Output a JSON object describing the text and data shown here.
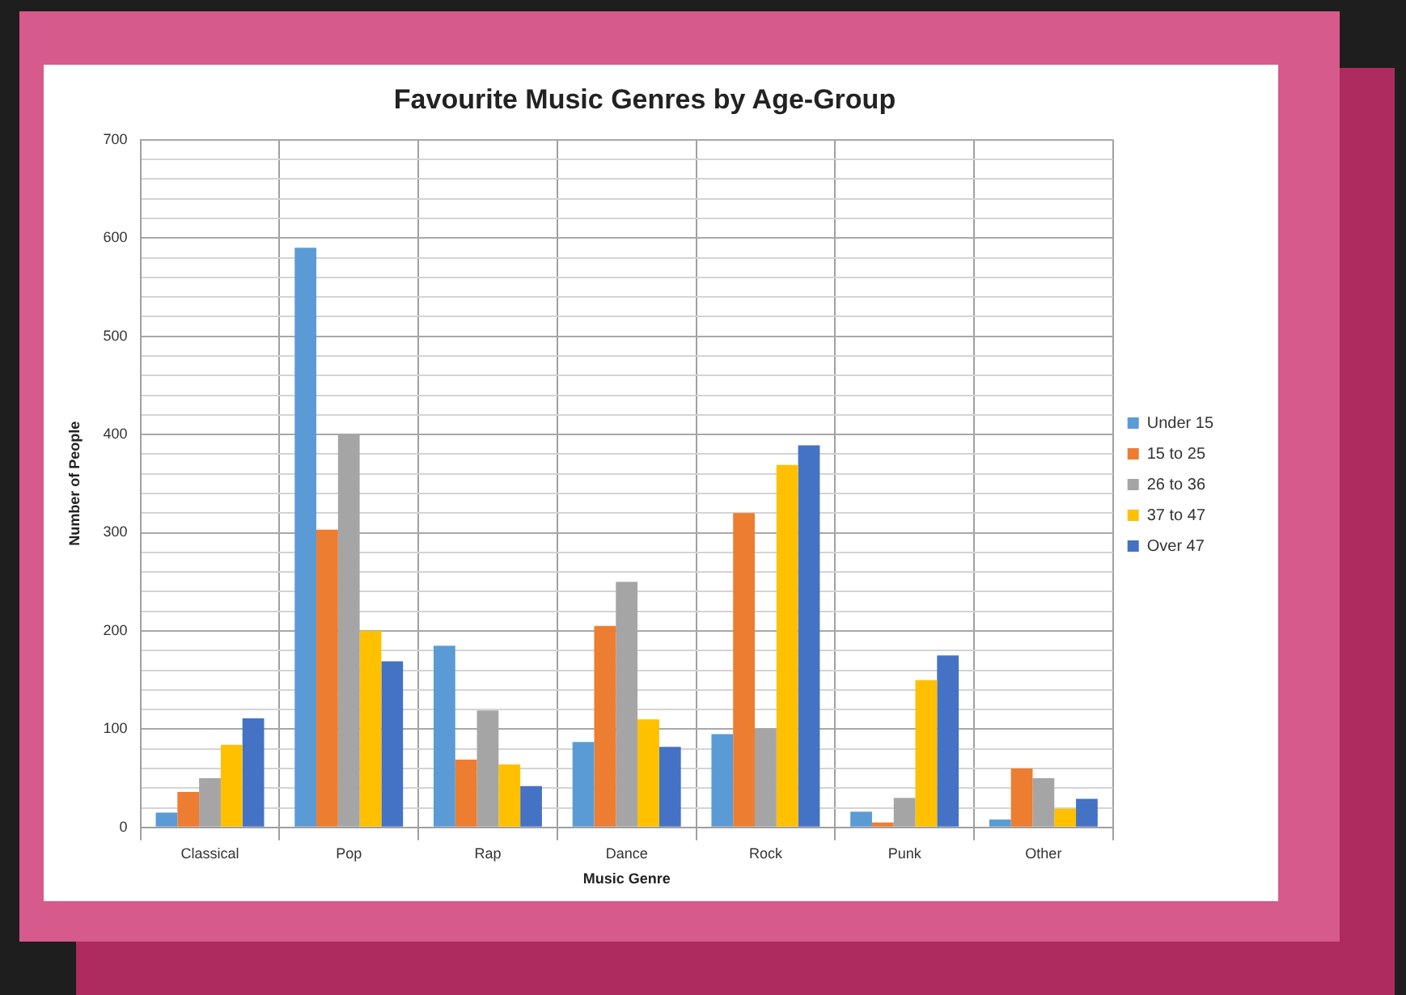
{
  "chart_data": {
    "type": "bar",
    "title": "Favourite Music Genres by Age-Group",
    "xlabel": "Music Genre",
    "ylabel": "Number of People",
    "categories": [
      "Classical",
      "Pop",
      "Rap",
      "Dance",
      "Rock",
      "Punk",
      "Other"
    ],
    "series": [
      {
        "name": "Under 15",
        "color": "#5b9bd5",
        "values": [
          15,
          590,
          185,
          87,
          95,
          16,
          8
        ]
      },
      {
        "name": "15 to 25",
        "color": "#ed7d31",
        "values": [
          36,
          303,
          69,
          205,
          320,
          5,
          60
        ]
      },
      {
        "name": "26 to 36",
        "color": "#a5a5a5",
        "values": [
          50,
          400,
          119,
          250,
          100,
          30,
          50
        ]
      },
      {
        "name": "37 to 47",
        "color": "#ffc000",
        "values": [
          84,
          200,
          64,
          110,
          369,
          150,
          19
        ]
      },
      {
        "name": "Over 47",
        "color": "#4472c4",
        "values": [
          111,
          169,
          42,
          82,
          389,
          175,
          29
        ]
      }
    ],
    "ylim": [
      0,
      700
    ],
    "yticks": [
      0,
      {
        "value": 20,
        "label": null
      },
      {
        "value": 40,
        "label": null
      },
      {
        "value": 60,
        "label": null
      },
      {
        "value": 80,
        "label": null
      },
      100,
      {
        "value": 120,
        "label": null
      },
      {
        "value": 140,
        "label": null
      },
      {
        "value": 160,
        "label": null
      },
      {
        "value": 180,
        "label": null
      },
      200,
      {
        "value": 220,
        "label": null
      },
      {
        "value": 240,
        "label": null
      },
      {
        "value": 260,
        "label": null
      },
      {
        "value": 280,
        "label": null
      },
      300,
      {
        "value": 320,
        "label": null
      },
      {
        "value": 340,
        "label": null
      },
      {
        "value": 360,
        "label": null
      },
      {
        "value": 380,
        "label": null
      },
      400,
      {
        "value": 420,
        "label": null
      },
      {
        "value": 440,
        "label": null
      },
      {
        "value": 460,
        "label": null
      },
      {
        "value": 480,
        "label": null
      },
      500,
      {
        "value": 520,
        "label": null
      },
      {
        "value": 540,
        "label": null
      },
      {
        "value": 560,
        "label": null
      },
      {
        "value": 580,
        "label": null
      },
      600,
      {
        "value": 620,
        "label": null
      },
      {
        "value": 640,
        "label": null
      },
      {
        "value": 660,
        "label": null
      },
      {
        "value": 680,
        "label": null
      },
      700
    ],
    "grid": true,
    "legend": "right"
  }
}
